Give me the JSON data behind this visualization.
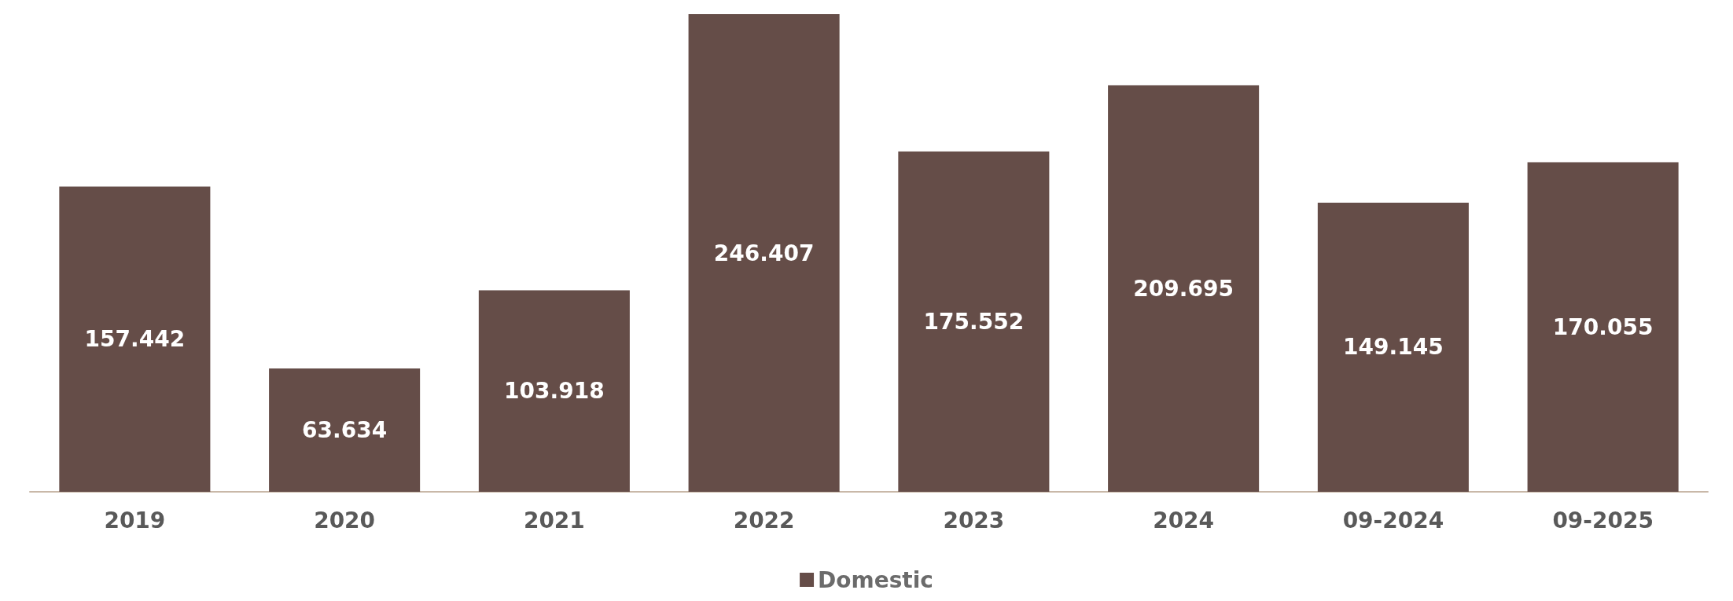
{
  "chart_data": {
    "type": "bar",
    "categories": [
      "2019",
      "2020",
      "2021",
      "2022",
      "2023",
      "2024",
      "09-2024",
      "09-2025"
    ],
    "series": [
      {
        "name": "Domestic",
        "color": "#654d48",
        "values": [
          157.442,
          63.634,
          103.918,
          246.407,
          175.552,
          209.695,
          149.145,
          170.055
        ]
      }
    ],
    "data_labels": true,
    "legend": "bottom",
    "grid": false
  }
}
